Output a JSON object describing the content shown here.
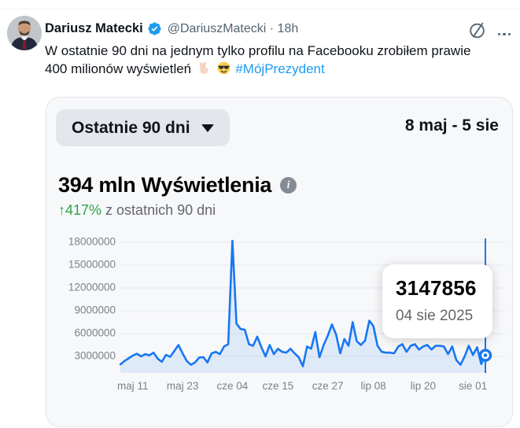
{
  "tweet": {
    "display_name": "Dariusz Matecki",
    "handle_and_time": "@DariuszMatecki · 18h",
    "body_line1": "W ostatnie 90 dni na jednym tylko profilu na Facebooku zrobiłem prawie",
    "body_line2": "400 milionów wyświetleń",
    "hashtag": "#MójPrezydent",
    "icons": [
      "grok-icon",
      "more-options-icon",
      "verified-badge-icon",
      "victory-hand-emoji",
      "sunglasses-face-emoji"
    ],
    "accent_color": "#1d9bf0"
  },
  "card": {
    "range_button_label": "Ostatnie 90 dni",
    "date_range": "8 maj - 5 sie",
    "metric_title": "394 mln Wyświetlenia",
    "change_percent": "↑417%",
    "change_caption": " z ostatnich 90 dni",
    "info_icon": "i",
    "tooltip_value": "3147856",
    "tooltip_date": "04 sie 2025"
  },
  "chart_data": {
    "type": "area",
    "title": "394 mln Wyświetlenia",
    "subtitle": "↑417% z ostatnich 90 dni",
    "x_start_label": "8 maj",
    "x_end_label": "5 sie",
    "x_tick_labels": [
      "maj 11",
      "maj 23",
      "cze 04",
      "cze 15",
      "cze 27",
      "lip 08",
      "lip 20",
      "sie 01"
    ],
    "x_tick_days": [
      3,
      15,
      27,
      38,
      50,
      61,
      73,
      85
    ],
    "y_ticks": [
      3000000,
      6000000,
      9000000,
      12000000,
      15000000,
      18000000
    ],
    "ylim": [
      830000,
      19800000
    ],
    "grid": true,
    "legend": false,
    "line_color": "#1877f2",
    "fill_opacity": 0.1,
    "axis_text_color": "#7d8187",
    "values": [
      1950000,
      2400000,
      2750000,
      3100000,
      3350000,
      3000000,
      3300000,
      3150000,
      3500000,
      2700000,
      2300000,
      3200000,
      2950000,
      3700000,
      4500000,
      3400000,
      2400000,
      1900000,
      2200000,
      2850000,
      2900000,
      2200000,
      3400000,
      3600000,
      3300000,
      4300000,
      4600000,
      18200000,
      7300000,
      6600000,
      6500000,
      4600000,
      4400000,
      5600000,
      4200000,
      3000000,
      4500000,
      3300000,
      4000000,
      3600000,
      3500000,
      4000000,
      3400000,
      2900000,
      1700000,
      4300000,
      4000000,
      6200000,
      2900000,
      4500000,
      5700000,
      7200000,
      5900000,
      3400000,
      5300000,
      4400000,
      7500000,
      5000000,
      4500000,
      5100000,
      7700000,
      7000000,
      4400000,
      3600000,
      3500000,
      3500000,
      3400000,
      4300000,
      4600000,
      3600000,
      4400000,
      4600000,
      3900000,
      4300000,
      4500000,
      3900000,
      4400000,
      4400000,
      4300000,
      3300000,
      4300000,
      2500000,
      1900000,
      3000000,
      4400000,
      3200000,
      4200000,
      2000000,
      3147856
    ],
    "highlight": {
      "index": 88,
      "value": 3147856,
      "date": "04 sie 2025"
    }
  }
}
